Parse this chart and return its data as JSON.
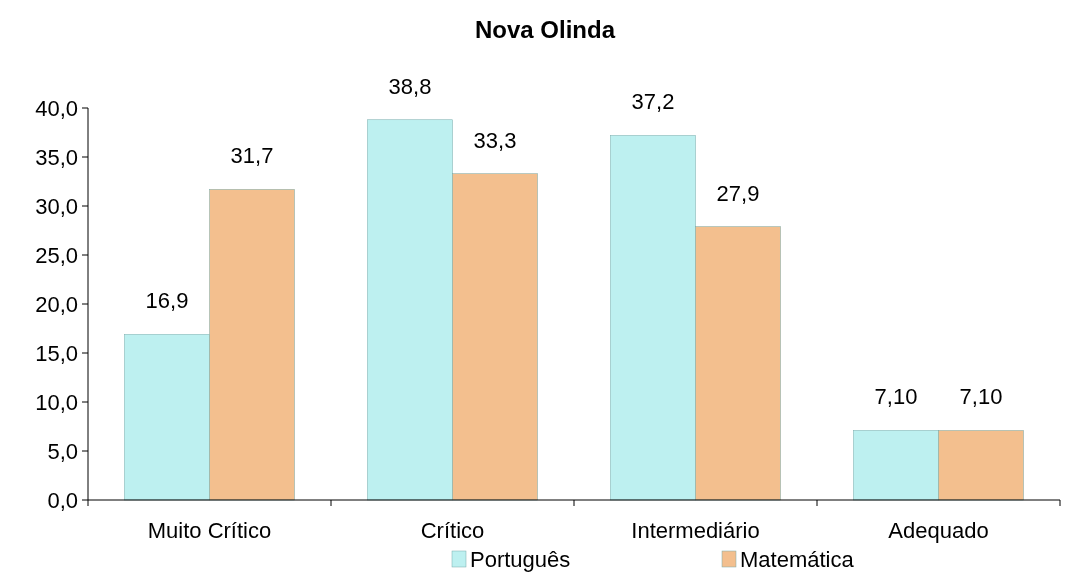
{
  "chart_data": {
    "type": "bar",
    "title": "Nova Olinda",
    "categories": [
      "Muito Crítico",
      "Crítico",
      "Intermediário",
      "Adequado"
    ],
    "series": [
      {
        "name": "Português",
        "color": "#bdf0f0",
        "values": [
          16.9,
          38.8,
          37.2,
          7.1
        ],
        "value_labels": [
          "16,9",
          "38,8",
          "37,2",
          "7,10"
        ]
      },
      {
        "name": "Matemática",
        "color": "#f3bf8e",
        "values": [
          31.7,
          33.3,
          27.9,
          7.1
        ],
        "value_labels": [
          "31,7",
          "33,3",
          "27,9",
          "7,10"
        ]
      }
    ],
    "ylim": [
      0,
      40
    ],
    "yticks": [
      {
        "value": 0,
        "label": "0,0"
      },
      {
        "value": 5,
        "label": "5,0"
      },
      {
        "value": 10,
        "label": "10,0"
      },
      {
        "value": 15,
        "label": "15,0"
      },
      {
        "value": 20,
        "label": "20,0"
      },
      {
        "value": 25,
        "label": "25,0"
      },
      {
        "value": 30,
        "label": "30,0"
      },
      {
        "value": 35,
        "label": "35,0"
      },
      {
        "value": 40,
        "label": "40,0"
      }
    ],
    "grid": false,
    "legend": "bottom"
  }
}
